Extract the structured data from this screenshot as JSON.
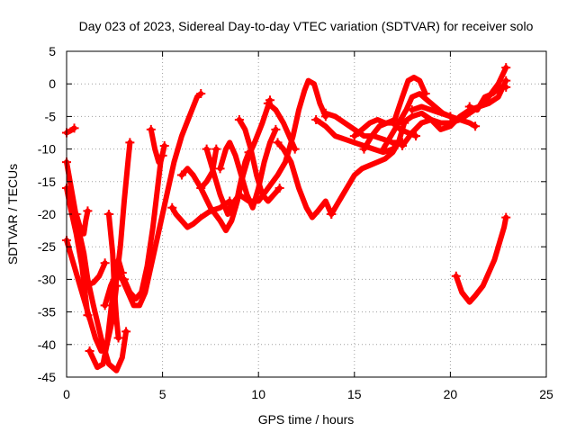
{
  "chart_data": {
    "type": "scatter",
    "title": "Day 023 of 2023, Sidereal Day-to-day VTEC variation (SDTVAR) for receiver solo",
    "xlabel": "GPS time / hours",
    "ylabel": "SDTVAR / TECUs",
    "xlim": [
      0,
      25
    ],
    "ylim": [
      -45,
      5
    ],
    "xticks": [
      0,
      5,
      10,
      15,
      20,
      25
    ],
    "yticks": [
      5,
      0,
      -5,
      -10,
      -15,
      -20,
      -25,
      -30,
      -35,
      -40,
      -45
    ],
    "grid": true,
    "marker": "plus",
    "color": "#ff0000",
    "tracks": [
      [
        [
          0.0,
          -7.5
        ],
        [
          0.2,
          -7.2
        ],
        [
          0.4,
          -6.8
        ]
      ],
      [
        [
          0.0,
          -12
        ],
        [
          0.3,
          -17
        ],
        [
          0.6,
          -22
        ],
        [
          0.9,
          -26
        ],
        [
          1.1,
          -30
        ],
        [
          1.4,
          -34
        ],
        [
          1.8,
          -39
        ],
        [
          2.2,
          -43
        ],
        [
          2.6,
          -44
        ],
        [
          2.9,
          -42
        ],
        [
          3.1,
          -38
        ]
      ],
      [
        [
          0.0,
          -16
        ],
        [
          0.2,
          -19
        ],
        [
          0.5,
          -23
        ],
        [
          0.8,
          -28
        ],
        [
          1.0,
          -33
        ],
        [
          1.1,
          -35.5
        ]
      ],
      [
        [
          0.0,
          -24
        ],
        [
          0.3,
          -27
        ],
        [
          0.6,
          -30
        ],
        [
          0.9,
          -33
        ],
        [
          1.2,
          -36
        ],
        [
          1.5,
          -39
        ],
        [
          1.8,
          -41
        ],
        [
          2.1,
          -40
        ],
        [
          2.4,
          -36
        ],
        [
          2.6,
          -31
        ]
      ],
      [
        [
          0.5,
          -20
        ],
        [
          0.7,
          -22
        ],
        [
          0.9,
          -23
        ],
        [
          1.0,
          -21
        ],
        [
          1.1,
          -19.5
        ]
      ],
      [
        [
          1.2,
          -41
        ],
        [
          1.6,
          -43.5
        ],
        [
          1.9,
          -43
        ],
        [
          2.1,
          -40
        ],
        [
          2.3,
          -35
        ],
        [
          2.5,
          -30
        ],
        [
          2.7,
          -27
        ],
        [
          2.9,
          -29
        ]
      ],
      [
        [
          1.0,
          -31
        ],
        [
          1.4,
          -30.5
        ],
        [
          1.7,
          -29.5
        ],
        [
          2.0,
          -27.5
        ]
      ],
      [
        [
          2.2,
          -20
        ],
        [
          2.4,
          -26
        ],
        [
          2.5,
          -32
        ],
        [
          2.6,
          -36
        ],
        [
          2.7,
          -39
        ]
      ],
      [
        [
          2.0,
          -34
        ],
        [
          2.3,
          -31
        ],
        [
          2.6,
          -29
        ],
        [
          2.9,
          -30
        ],
        [
          3.2,
          -32
        ],
        [
          3.5,
          -34
        ],
        [
          3.8,
          -34
        ],
        [
          4.1,
          -32
        ],
        [
          4.4,
          -28
        ],
        [
          4.7,
          -24
        ],
        [
          5.0,
          -20
        ],
        [
          5.3,
          -16
        ],
        [
          5.6,
          -12
        ],
        [
          6.0,
          -8
        ],
        [
          6.4,
          -5
        ],
        [
          6.8,
          -2
        ],
        [
          7.0,
          -1.5
        ]
      ],
      [
        [
          2.4,
          -36
        ],
        [
          2.6,
          -30
        ],
        [
          2.8,
          -25
        ],
        [
          3.0,
          -18
        ],
        [
          3.2,
          -12
        ],
        [
          3.3,
          -9
        ]
      ],
      [
        [
          3.0,
          -30
        ],
        [
          3.3,
          -32
        ],
        [
          3.6,
          -33
        ],
        [
          3.9,
          -32
        ],
        [
          4.2,
          -28
        ],
        [
          4.5,
          -22
        ],
        [
          4.7,
          -17
        ],
        [
          4.9,
          -12
        ],
        [
          5.1,
          -9.5
        ]
      ],
      [
        [
          4.4,
          -7
        ],
        [
          4.6,
          -10
        ],
        [
          4.8,
          -12
        ],
        [
          5.0,
          -11
        ]
      ],
      [
        [
          5.5,
          -19
        ],
        [
          5.7,
          -20
        ],
        [
          6.0,
          -21
        ],
        [
          6.3,
          -22
        ],
        [
          6.6,
          -21.5
        ],
        [
          7.0,
          -20.5
        ],
        [
          7.5,
          -19.5
        ],
        [
          8.0,
          -19
        ],
        [
          8.5,
          -18
        ]
      ],
      [
        [
          6.0,
          -14
        ],
        [
          6.3,
          -13
        ],
        [
          6.6,
          -14
        ],
        [
          7.0,
          -16
        ],
        [
          7.3,
          -15
        ],
        [
          7.6,
          -13.5
        ],
        [
          7.8,
          -10
        ]
      ],
      [
        [
          7.3,
          -10
        ],
        [
          7.6,
          -13
        ],
        [
          8.0,
          -17
        ],
        [
          8.4,
          -20
        ],
        [
          8.8,
          -19
        ],
        [
          9.0,
          -16
        ],
        [
          9.3,
          -12
        ],
        [
          9.5,
          -10.5
        ]
      ],
      [
        [
          7.0,
          -16
        ],
        [
          7.5,
          -19
        ],
        [
          8.0,
          -21
        ],
        [
          8.3,
          -22.5
        ],
        [
          8.6,
          -21
        ],
        [
          8.9,
          -18
        ],
        [
          9.2,
          -14
        ],
        [
          9.5,
          -11
        ],
        [
          9.8,
          -9
        ],
        [
          10.2,
          -6
        ],
        [
          10.6,
          -2.5
        ]
      ],
      [
        [
          8.0,
          -13
        ],
        [
          8.3,
          -10
        ],
        [
          8.5,
          -9
        ],
        [
          8.8,
          -11
        ],
        [
          9.1,
          -14
        ],
        [
          9.4,
          -17
        ],
        [
          9.7,
          -19
        ],
        [
          10.0,
          -16
        ],
        [
          10.3,
          -12
        ],
        [
          10.6,
          -9
        ],
        [
          10.9,
          -7
        ]
      ],
      [
        [
          9.0,
          -5.5
        ],
        [
          9.3,
          -7
        ],
        [
          9.6,
          -10
        ],
        [
          9.9,
          -14
        ],
        [
          10.2,
          -17
        ],
        [
          10.5,
          -18
        ],
        [
          10.8,
          -17
        ],
        [
          11.1,
          -16
        ]
      ],
      [
        [
          8.5,
          -19
        ],
        [
          9.0,
          -17
        ],
        [
          9.5,
          -18
        ],
        [
          10.0,
          -18
        ],
        [
          10.5,
          -16
        ],
        [
          11.0,
          -14
        ],
        [
          11.4,
          -12
        ],
        [
          11.8,
          -8
        ],
        [
          12.1,
          -4
        ],
        [
          12.4,
          -1
        ],
        [
          12.6,
          0.5
        ],
        [
          12.9,
          0
        ],
        [
          13.2,
          -3
        ],
        [
          13.5,
          -5
        ]
      ],
      [
        [
          10.5,
          -3
        ],
        [
          10.9,
          -4
        ],
        [
          11.3,
          -6
        ],
        [
          11.6,
          -8
        ],
        [
          11.9,
          -10
        ]
      ],
      [
        [
          11.0,
          -9
        ],
        [
          11.3,
          -10
        ],
        [
          11.7,
          -12
        ],
        [
          12.1,
          -16
        ],
        [
          12.5,
          -19
        ],
        [
          12.8,
          -20.5
        ],
        [
          13.1,
          -19.5
        ],
        [
          13.5,
          -18
        ],
        [
          13.8,
          -20
        ]
      ],
      [
        [
          13.8,
          -20
        ],
        [
          14.2,
          -18
        ],
        [
          14.6,
          -16
        ],
        [
          15.0,
          -14
        ],
        [
          15.4,
          -13
        ],
        [
          15.8,
          -12.5
        ],
        [
          16.2,
          -12
        ],
        [
          16.6,
          -11.5
        ],
        [
          17.0,
          -10.5
        ],
        [
          17.3,
          -9
        ],
        [
          17.6,
          -6
        ]
      ],
      [
        [
          13.0,
          -5.5
        ],
        [
          13.5,
          -6.5
        ],
        [
          14.0,
          -8
        ],
        [
          14.5,
          -8.5
        ],
        [
          15.0,
          -9
        ],
        [
          15.5,
          -9.5
        ],
        [
          16.0,
          -10
        ],
        [
          16.5,
          -10.5
        ],
        [
          17.0,
          -10
        ]
      ],
      [
        [
          13.5,
          -4.5
        ],
        [
          14.0,
          -5
        ],
        [
          14.5,
          -6
        ],
        [
          15.0,
          -7
        ],
        [
          15.5,
          -8
        ],
        [
          16.0,
          -8
        ],
        [
          16.5,
          -8.5
        ],
        [
          17.0,
          -9
        ],
        [
          17.5,
          -9
        ]
      ],
      [
        [
          15.0,
          -8
        ],
        [
          15.4,
          -7
        ],
        [
          15.8,
          -6
        ],
        [
          16.2,
          -5.5
        ],
        [
          16.6,
          -6
        ],
        [
          17.0,
          -6
        ],
        [
          17.4,
          -7
        ],
        [
          17.8,
          -7.5
        ],
        [
          18.2,
          -8
        ]
      ],
      [
        [
          15.5,
          -10
        ],
        [
          15.9,
          -8
        ],
        [
          16.3,
          -6.5
        ],
        [
          16.7,
          -6
        ],
        [
          17.1,
          -5.5
        ],
        [
          17.5,
          -2
        ],
        [
          17.8,
          0.5
        ],
        [
          18.1,
          1
        ],
        [
          18.4,
          0.5
        ],
        [
          18.7,
          -1.5
        ]
      ],
      [
        [
          16.5,
          -10
        ],
        [
          16.9,
          -8
        ],
        [
          17.3,
          -6
        ],
        [
          17.7,
          -4
        ],
        [
          18.0,
          -2
        ],
        [
          18.4,
          -1.5
        ],
        [
          18.8,
          -2.5
        ],
        [
          19.2,
          -3.5
        ],
        [
          19.6,
          -4.5
        ],
        [
          20.0,
          -5
        ]
      ],
      [
        [
          17.5,
          -9.5
        ],
        [
          18.0,
          -7.5
        ],
        [
          18.5,
          -6
        ],
        [
          19.0,
          -5.5
        ],
        [
          19.5,
          -6
        ],
        [
          20.0,
          -6
        ],
        [
          20.5,
          -5.5
        ],
        [
          21.0,
          -4.5
        ],
        [
          21.5,
          -3.5
        ],
        [
          22.0,
          -2
        ],
        [
          22.5,
          0
        ],
        [
          22.9,
          2.5
        ]
      ],
      [
        [
          17.5,
          -6
        ],
        [
          18.0,
          -5
        ],
        [
          18.5,
          -4.5
        ],
        [
          19.0,
          -5.5
        ],
        [
          19.5,
          -7
        ],
        [
          20.0,
          -6.5
        ],
        [
          20.5,
          -5
        ],
        [
          21.0,
          -4
        ],
        [
          21.5,
          -3.5
        ],
        [
          22.0,
          -3
        ],
        [
          22.5,
          -2
        ],
        [
          22.9,
          0.5
        ]
      ],
      [
        [
          18.0,
          -4
        ],
        [
          18.5,
          -3.5
        ],
        [
          19.0,
          -4
        ],
        [
          19.5,
          -4.5
        ],
        [
          20.0,
          -5
        ],
        [
          20.5,
          -5.5
        ],
        [
          21.0,
          -6
        ],
        [
          21.3,
          -6.5
        ]
      ],
      [
        [
          21.0,
          -3.5
        ],
        [
          21.4,
          -4
        ],
        [
          21.8,
          -2
        ],
        [
          22.2,
          -1.5
        ],
        [
          22.6,
          -0.5
        ],
        [
          22.9,
          -0.5
        ]
      ],
      [
        [
          20.3,
          -29.5
        ],
        [
          20.6,
          -32
        ],
        [
          21.0,
          -33.5
        ],
        [
          21.3,
          -32.5
        ],
        [
          21.7,
          -31
        ],
        [
          22.0,
          -29
        ],
        [
          22.3,
          -27
        ],
        [
          22.6,
          -24
        ],
        [
          22.8,
          -22
        ],
        [
          22.9,
          -20.5
        ]
      ]
    ]
  }
}
